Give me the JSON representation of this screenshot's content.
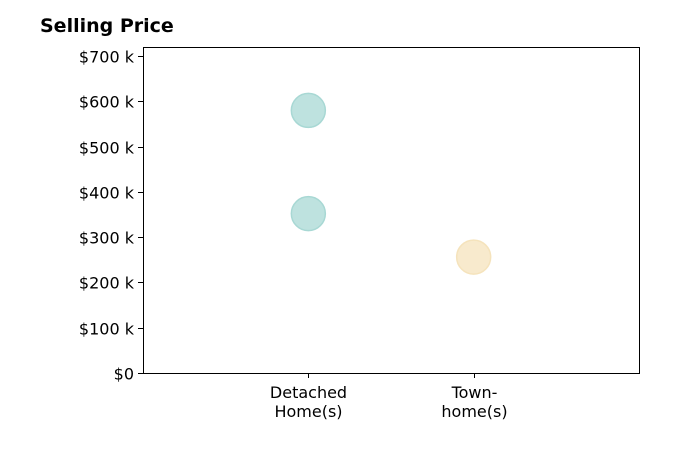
{
  "chart_data": {
    "type": "scatter",
    "title": "Selling Price",
    "xlabel": "",
    "ylabel": "",
    "categories": [
      [
        "Detached",
        "Home(s)"
      ],
      [
        "Town-",
        "home(s)"
      ]
    ],
    "y_ticks": [
      "$0",
      "$100 k",
      "$200 k",
      "$300 k",
      "$400 k",
      "$500 k",
      "$600 k",
      "$700 k"
    ],
    "y_tick_values": [
      0,
      100000,
      200000,
      300000,
      400000,
      500000,
      600000,
      700000
    ],
    "ylim": [
      0,
      720000
    ],
    "xlim": [
      0,
      3
    ],
    "grid": false,
    "points": [
      {
        "category_index": 0,
        "value": 580000,
        "color": "#a8d8d4"
      },
      {
        "category_index": 0,
        "value": 352000,
        "color": "#a8d8d4"
      },
      {
        "category_index": 1,
        "value": 256000,
        "color": "#f5e3bc"
      }
    ]
  }
}
